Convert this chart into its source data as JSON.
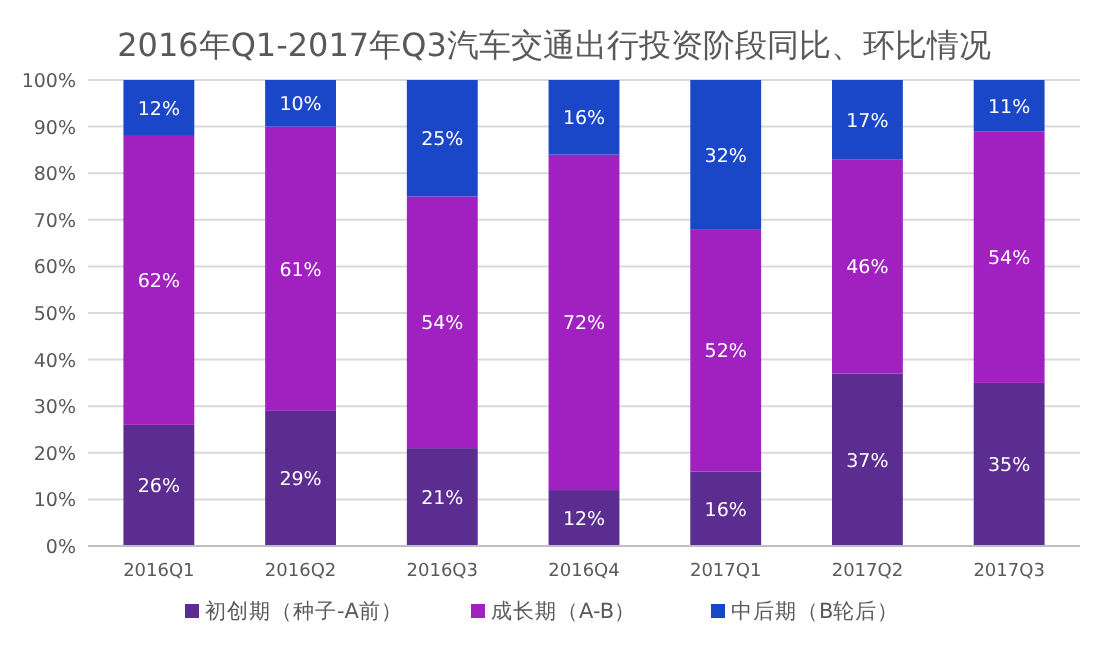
{
  "chart_data": {
    "type": "bar",
    "stacked": true,
    "title": "2016年Q1-2017年Q3汽车交通出行投资阶段同比、环比情况",
    "categories": [
      "2016Q1",
      "2016Q2",
      "2016Q3",
      "2016Q4",
      "2017Q1",
      "2017Q2",
      "2017Q3"
    ],
    "series": [
      {
        "name": "初创期（种子-A前）",
        "color": "#5c2d91",
        "values": [
          26,
          29,
          21,
          12,
          16,
          37,
          35
        ],
        "value_labels": [
          "26%",
          "29%",
          "21%",
          "12%",
          "16%",
          "37%",
          "35%"
        ]
      },
      {
        "name": "成长期（A-B）",
        "color": "#a020c0",
        "values": [
          62,
          61,
          54,
          72,
          52,
          46,
          54
        ],
        "value_labels": [
          "62%",
          "61%",
          "54%",
          "72%",
          "52%",
          "46%",
          "54%"
        ]
      },
      {
        "name": "中后期（B轮后）",
        "color": "#1a47c8",
        "values": [
          12,
          10,
          25,
          16,
          32,
          17,
          11
        ],
        "value_labels": [
          "12%",
          "10%",
          "25%",
          "16%",
          "32%",
          "17%",
          "11%"
        ]
      }
    ],
    "ylim": [
      0,
      100
    ],
    "yticks": [
      {
        "value": 0,
        "label": "0%"
      },
      {
        "value": 10,
        "label": "10%"
      },
      {
        "value": 20,
        "label": "20%"
      },
      {
        "value": 30,
        "label": "30%"
      },
      {
        "value": 40,
        "label": "40%"
      },
      {
        "value": 50,
        "label": "50%"
      },
      {
        "value": 60,
        "label": "60%"
      },
      {
        "value": 70,
        "label": "70%"
      },
      {
        "value": 80,
        "label": "80%"
      },
      {
        "value": 90,
        "label": "90%"
      },
      {
        "value": 100,
        "label": "100%"
      }
    ],
    "grid": "y",
    "legend": "bottom"
  }
}
